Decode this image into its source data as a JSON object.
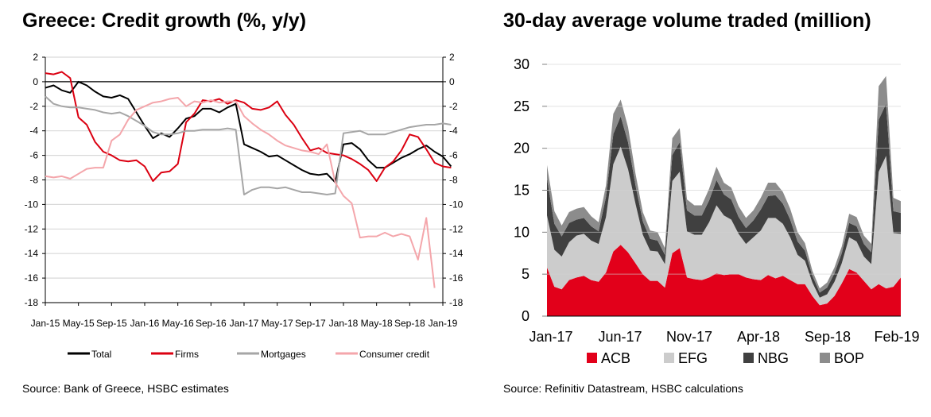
{
  "left_chart": {
    "title": "Greece: Credit growth (%, y/y)",
    "source": "Source: Bank of Greece, HSBC estimates"
  },
  "right_chart": {
    "title": "30-day average volume traded (million)",
    "source": "Source: Refinitiv Datastream, HSBC calculations"
  },
  "chart_data": [
    {
      "type": "line",
      "title": "Greece: Credit growth (%, y/y)",
      "x_tick_labels": [
        "Jan-15",
        "May-15",
        "Sep-15",
        "Jan-16",
        "May-16",
        "Sep-16",
        "Jan-17",
        "May-17",
        "Sep-17",
        "Jan-18",
        "May-18",
        "Sep-18",
        "Jan-19"
      ],
      "x_start": "Jan-15",
      "ylim": [
        -18,
        2
      ],
      "y_ticks": [
        2,
        0,
        -2,
        -4,
        -6,
        -8,
        -10,
        -12,
        -14,
        -16,
        -18
      ],
      "secondary_y_ticks": [
        2,
        0,
        -2,
        -4,
        -6,
        -8,
        -10,
        -12,
        -14,
        -16,
        -18
      ],
      "grid": true,
      "legend_position": "bottom",
      "series": [
        {
          "name": "Total",
          "color": "#000000",
          "values": [
            -0.5,
            -0.3,
            -0.7,
            -0.9,
            0.0,
            -0.3,
            -0.8,
            -1.2,
            -1.3,
            -1.1,
            -1.4,
            -2.5,
            -3.6,
            -4.6,
            -4.2,
            -4.5,
            -3.8,
            -3.0,
            -2.8,
            -2.2,
            -2.2,
            -2.5,
            -2.1,
            -1.8,
            -5.1,
            -5.4,
            -5.7,
            -6.1,
            -6.0,
            -6.4,
            -6.8,
            -7.2,
            -7.5,
            -7.6,
            -7.5,
            -8.2,
            -5.1,
            -5.0,
            -5.5,
            -6.4,
            -7.0,
            -7.0,
            -6.6,
            -6.2,
            -5.9,
            -5.5,
            -5.2,
            -5.7,
            -6.1,
            -6.9
          ]
        },
        {
          "name": "Firms",
          "color": "#db0011",
          "values": [
            0.7,
            0.6,
            0.8,
            0.3,
            -2.9,
            -3.5,
            -4.9,
            -5.7,
            -6.0,
            -6.4,
            -6.5,
            -6.4,
            -6.9,
            -8.1,
            -7.4,
            -7.3,
            -6.7,
            -3.3,
            -2.6,
            -1.5,
            -1.6,
            -1.4,
            -1.8,
            -1.5,
            -1.7,
            -2.2,
            -2.3,
            -2.1,
            -1.6,
            -2.7,
            -3.5,
            -4.6,
            -5.6,
            -5.4,
            -5.8,
            -5.9,
            -6.0,
            -6.3,
            -6.7,
            -7.2,
            -8.1,
            -7.0,
            -6.5,
            -5.6,
            -4.3,
            -4.5,
            -5.5,
            -6.6,
            -6.9,
            -7.0
          ]
        },
        {
          "name": "Mortgages",
          "color": "#a6a6a6",
          "values": [
            -1.2,
            -1.8,
            -2.0,
            -2.1,
            -2.1,
            -2.2,
            -2.3,
            -2.5,
            -2.6,
            -2.5,
            -2.8,
            -3.2,
            -3.6,
            -4.1,
            -4.3,
            -4.3,
            -4.2,
            -4.0,
            -4.0,
            -3.9,
            -3.9,
            -3.9,
            -3.8,
            -3.9,
            -9.2,
            -8.8,
            -8.6,
            -8.6,
            -8.7,
            -8.6,
            -8.8,
            -9.0,
            -9.0,
            -9.1,
            -9.2,
            -9.1,
            -4.2,
            -4.1,
            -4.0,
            -4.3,
            -4.3,
            -4.3,
            -4.1,
            -3.9,
            -3.7,
            -3.6,
            -3.5,
            -3.5,
            -3.4,
            -3.5
          ]
        },
        {
          "name": "Consumer credit",
          "color": "#f4a6ab",
          "values": [
            -7.7,
            -7.8,
            -7.7,
            -7.9,
            -7.5,
            -7.1,
            -7.0,
            -7.0,
            -4.8,
            -4.3,
            -3.1,
            -2.3,
            -2.0,
            -1.7,
            -1.6,
            -1.4,
            -1.3,
            -2.0,
            -1.6,
            -1.7,
            -1.5,
            -1.7,
            -1.6,
            -1.6,
            -2.8,
            -3.4,
            -3.9,
            -4.3,
            -4.8,
            -5.2,
            -5.4,
            -5.6,
            -5.7,
            -5.9,
            -5.1,
            -8.2,
            -9.3,
            -9.9,
            -12.7,
            -12.6,
            -12.6,
            -12.3,
            -12.6,
            -12.4,
            -12.6,
            -14.5,
            -11.1,
            -16.8
          ]
        }
      ]
    },
    {
      "type": "area",
      "stacked": true,
      "title": "30-day average volume traded (million)",
      "x_tick_labels": [
        "Jan-17",
        "Jun-17",
        "Nov-17",
        "Apr-18",
        "Sep-18",
        "Feb-19"
      ],
      "x_start": "Jan-17",
      "ylim": [
        0,
        30
      ],
      "y_ticks": [
        0,
        5,
        10,
        15,
        20,
        25,
        30
      ],
      "grid": true,
      "legend_position": "bottom",
      "series": [
        {
          "name": "ACB",
          "color": "#e2001a",
          "values": [
            5.8,
            3.5,
            3.2,
            4.3,
            4.6,
            4.8,
            4.3,
            4.1,
            5.2,
            7.7,
            8.5,
            7.6,
            6.3,
            5.0,
            4.2,
            4.2,
            3.4,
            7.5,
            8.1,
            4.6,
            4.4,
            4.3,
            4.6,
            5.1,
            4.9,
            5.0,
            5.0,
            4.6,
            4.4,
            4.3,
            4.9,
            4.5,
            4.8,
            4.3,
            3.8,
            3.8,
            2.4,
            1.3,
            1.5,
            2.4,
            3.9,
            5.6,
            5.2,
            4.2,
            3.2,
            3.8,
            3.3,
            3.5,
            4.6
          ]
        },
        {
          "name": "EFG",
          "color": "#cccccc",
          "values": [
            6.2,
            4.4,
            3.9,
            4.5,
            5.0,
            5.0,
            4.7,
            4.5,
            6.6,
            10.4,
            11.7,
            9.9,
            7.1,
            4.7,
            3.6,
            3.5,
            2.8,
            8.6,
            9.1,
            5.5,
            5.3,
            5.4,
            6.6,
            8.1,
            7.1,
            6.5,
            4.8,
            4.0,
            5.0,
            5.9,
            6.8,
            7.2,
            6.2,
            5.1,
            3.5,
            2.8,
            1.6,
            0.9,
            1.1,
            1.7,
            2.4,
            3.8,
            3.7,
            2.9,
            3.0,
            13.4,
            15.8,
            6.4,
            5.2
          ]
        },
        {
          "name": "NBG",
          "color": "#404040",
          "values": [
            4.4,
            3.1,
            2.4,
            2.3,
            1.9,
            1.9,
            1.7,
            1.5,
            2.4,
            3.6,
            3.6,
            3.2,
            2.2,
            1.6,
            1.4,
            1.3,
            1.1,
            3.1,
            3.5,
            2.5,
            2.3,
            2.3,
            2.6,
            3.0,
            2.5,
            2.4,
            2.0,
            1.9,
            2.0,
            2.5,
            2.6,
            2.7,
            2.4,
            2.1,
            1.6,
            1.2,
            0.8,
            0.6,
            0.8,
            1.0,
            1.2,
            1.7,
            1.8,
            1.5,
            1.4,
            6.2,
            6.2,
            2.6,
            2.5
          ]
        },
        {
          "name": "BOP",
          "color": "#8c8c8c",
          "values": [
            1.6,
            1.5,
            1.3,
            1.3,
            1.3,
            1.3,
            1.2,
            1.1,
            1.4,
            2.4,
            2.0,
            1.8,
            1.4,
            1.1,
            1.0,
            1.0,
            0.8,
            2.0,
            1.7,
            1.3,
            1.2,
            1.2,
            1.4,
            1.6,
            1.4,
            1.4,
            1.3,
            1.2,
            1.2,
            1.4,
            1.6,
            1.5,
            1.4,
            1.3,
            1.1,
            0.9,
            0.6,
            0.5,
            0.6,
            0.7,
            0.8,
            1.1,
            1.1,
            1.0,
            1.0,
            4.0,
            3.3,
            1.6,
            1.4
          ]
        }
      ]
    }
  ]
}
